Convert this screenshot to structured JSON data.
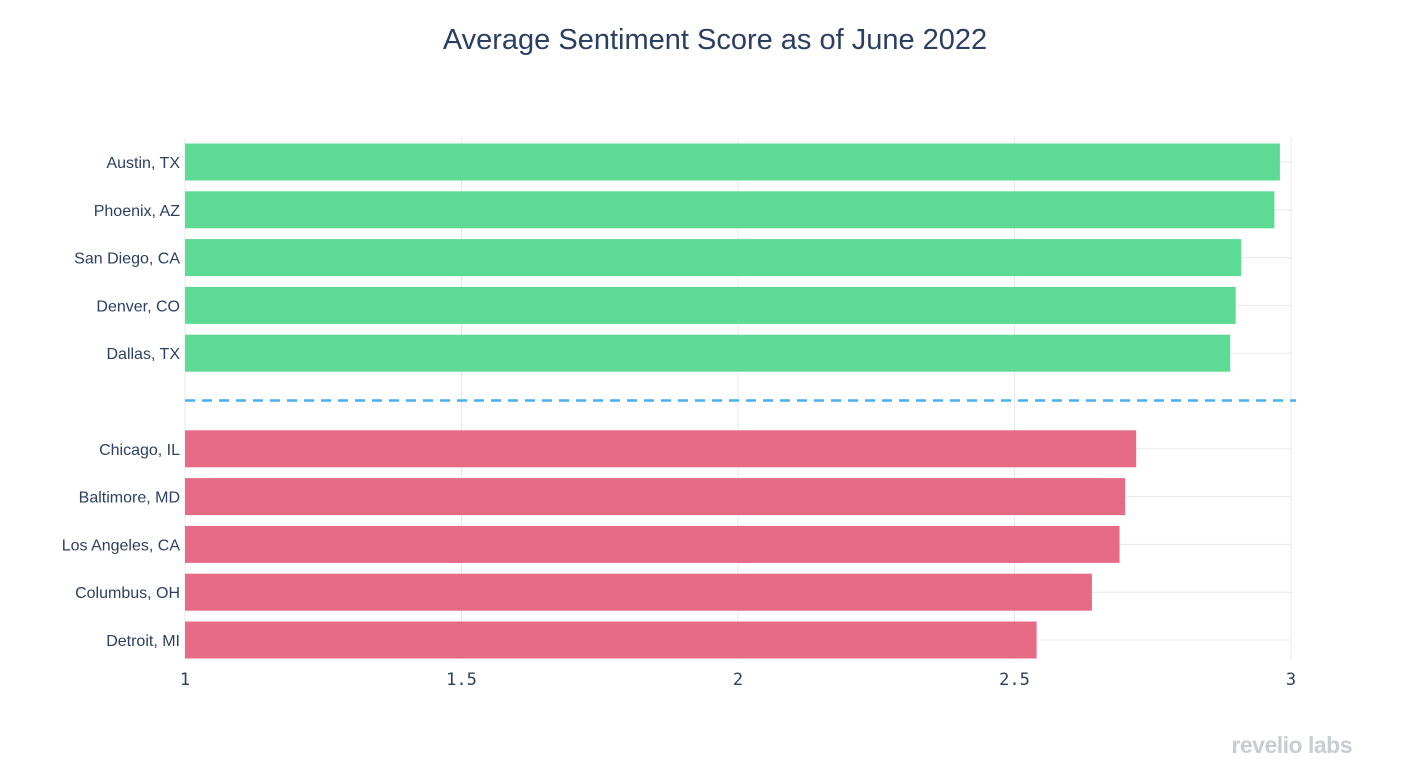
{
  "chart_data": {
    "type": "bar",
    "orientation": "horizontal",
    "title": "Average Sentiment Score as of June 2022",
    "xlabel": "",
    "ylabel": "",
    "xlim": [
      1,
      3
    ],
    "x_ticks": [
      1,
      1.5,
      2,
      2.5,
      3
    ],
    "x_tick_labels": [
      "1",
      "1.5",
      "2",
      "2.5",
      "3"
    ],
    "grid": true,
    "legend": "none",
    "series": [
      {
        "color": "#5ddb95",
        "categories": [
          "Austin, TX",
          "Phoenix, AZ",
          "San Diego, CA",
          "Denver, CO",
          "Dallas, TX"
        ],
        "values": [
          2.98,
          2.97,
          2.91,
          2.9,
          2.89
        ]
      },
      {
        "color": "#e86b86",
        "categories": [
          "Chicago, IL",
          "Baltimore, MD",
          "Los Angeles, CA",
          "Columbus, OH",
          "Detroit, MI"
        ],
        "values": [
          2.72,
          2.7,
          2.69,
          2.64,
          2.54
        ]
      }
    ],
    "separator": {
      "style": "dashed",
      "color": "#4aaef0"
    }
  },
  "colors": {
    "title": "#2b3f62",
    "axis_text": "#2b3f62",
    "grid": "#e6e8eb",
    "brand": "#c9cdd2"
  },
  "branding": {
    "logo_text": "revelio labs"
  }
}
